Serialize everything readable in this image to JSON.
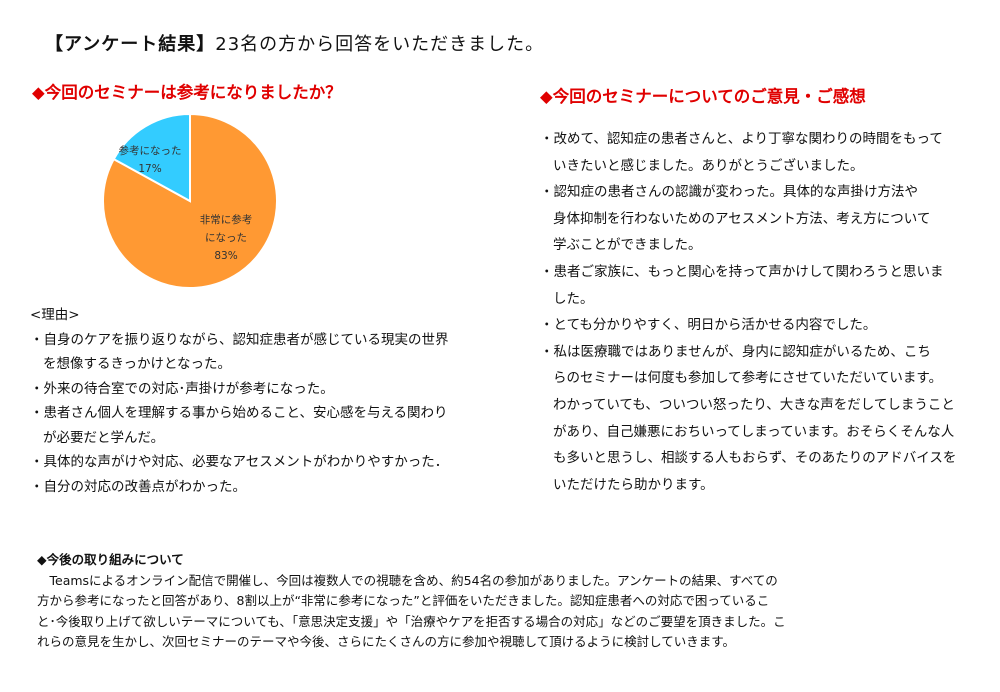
{
  "title": {
    "bracket": "【アンケート結果】",
    "rest": "23名の方から回答をいただきました。"
  },
  "left": {
    "heading": "◆今回のセミナーは参考になりましたか？",
    "reasons_label": "<理由>",
    "reasons": [
      [
        "・自身のケアを振り返りながら、認知症患者が感じている現実の世界",
        "を想像するきっかけとなった。"
      ],
      [
        "・外来の待合室での対応･声掛けが参考になった。"
      ],
      [
        "・患者さん個人を理解する事から始めること、安心感を与える関わり",
        "が必要だと学んだ。"
      ],
      [
        "・具体的な声がけや対応、必要なアセスメントがわかりやすかった．"
      ],
      [
        "・自分の対応の改善点がわかった。"
      ]
    ]
  },
  "chart_data": {
    "type": "pie",
    "categories": [
      "非常に参考になった",
      "参考になった"
    ],
    "values": [
      83,
      17
    ],
    "labels": [
      [
        "非常に参考",
        "になった",
        "83%"
      ],
      [
        "参考になった",
        "17%"
      ]
    ],
    "colors": [
      "#FF9933",
      "#33CCFF"
    ]
  },
  "right": {
    "heading": "◆今回のセミナーについてのご意見・ご感想",
    "items": [
      [
        "・改めて、認知症の患者さんと、より丁寧な関わりの時間をもって",
        "いきたいと感じました。ありがとうございました。"
      ],
      [
        "・認知症の患者さんの認識が変わった。具体的な声掛け方法や",
        "身体抑制を行わないためのアセスメント方法、考え方について",
        "学ぶことができました。"
      ],
      [
        "・患者ご家族に、もっと関心を持って声かけして関わろうと思いま",
        "した。"
      ],
      [
        "・とても分かりやすく、明日から活かせる内容でした。"
      ],
      [
        "・私は医療職ではありませんが、身内に認知症がいるため、こち",
        "らのセミナーは何度も参加して参考にさせていただいています。",
        "わかっていても、ついつい怒ったり、大きな声をだしてしまうこと",
        "があり、自己嫌悪におちいってしまっています。おそらくそんな人",
        "も多いと思うし、相談する人もおらず、そのあたりのアドバイスを",
        "いただけたら助かります。"
      ]
    ]
  },
  "future": {
    "heading": "◆今後の取り組みについて",
    "lines": [
      "　Teamsによるオンライン配信で開催し、今回は複数人での視聴を含め、約54名の参加がありました。アンケートの結果、すべての",
      "方から参考になったと回答があり、8割以上が“非常に参考になった”と評価をいただきました。認知症患者への対応で困っているこ",
      "と･今後取り上げて欲しいテーマについても、「意思決定支援」や「治療やケアを拒否する場合の対応」などのご要望を頂きました。こ",
      "れらの意見を生かし、次回セミナーのテーマや今後、さらにたくさんの方に参加や視聴して頂けるように検討していきます。"
    ]
  }
}
